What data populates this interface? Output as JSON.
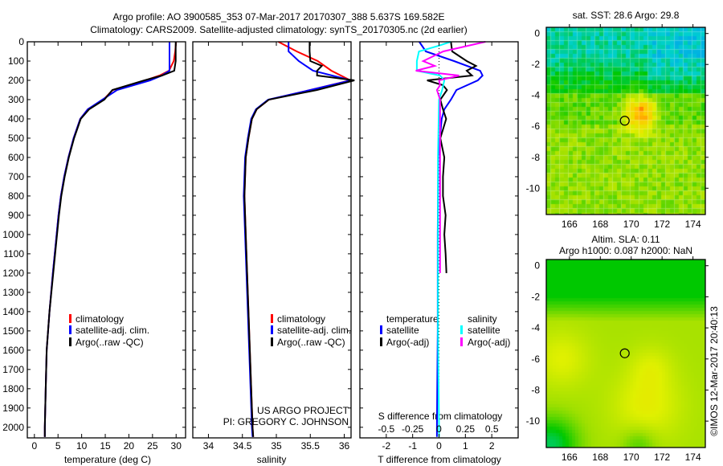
{
  "title": {
    "line1": "Argo profile: AO 3900585_353 07-Mar-2017 20170307_388 5.637S 169.582E",
    "line2": "Climatology: CARS2009. Satellite-adjusted climatology: synTS_20170305.nc (2d earlier)"
  },
  "credit": {
    "project": "US ARGO PROJECT",
    "pi": "PI: GREGORY C. JOHNSON",
    "stamp": "©IMOS 12-Mar-2017 20:40:13"
  },
  "colors": {
    "climatology": "#ff0000",
    "satellite": "#0000ff",
    "argo": "#000000",
    "sal_satellite": "#00ffff",
    "sal_argo": "#ff00ff"
  },
  "chart_data": [
    {
      "type": "line",
      "name": "temperature-profile",
      "xlabel": "temperature (deg C)",
      "ylabel": "",
      "xlim": [
        -1.5,
        32
      ],
      "ylim": [
        2055,
        0
      ],
      "xticks": [
        0,
        5,
        10,
        15,
        20,
        25,
        30
      ],
      "yticks": [
        0,
        100,
        200,
        300,
        400,
        500,
        600,
        700,
        800,
        900,
        1000,
        1100,
        1200,
        1300,
        1400,
        1500,
        1600,
        1700,
        1800,
        1900,
        2000
      ],
      "legend": [
        "climatology",
        "satellite-adj. clim.",
        "Argo(..raw -QC)"
      ],
      "series": [
        {
          "name": "climatology",
          "color": "#ff0000",
          "depth": [
            0,
            50,
            100,
            150,
            175,
            200,
            250,
            300,
            350,
            400,
            500,
            600,
            700,
            800,
            900,
            1000,
            1200,
            1400,
            1600,
            1800,
            2000,
            2050
          ],
          "values": [
            30.0,
            29.8,
            29.5,
            28.5,
            26.5,
            23.5,
            16.6,
            14.6,
            11.3,
            9.7,
            8.3,
            7.2,
            6.3,
            5.6,
            5.1,
            4.7,
            3.9,
            3.2,
            2.6,
            2.4,
            2.2,
            2.2
          ]
        },
        {
          "name": "satellite-adj. clim.",
          "color": "#0000ff",
          "depth": [
            0,
            50,
            100,
            150,
            175,
            200,
            250,
            300,
            350,
            400,
            500,
            600,
            700,
            800,
            900,
            1000,
            1200,
            1400,
            1600,
            1800,
            2000,
            2050
          ],
          "values": [
            28.6,
            28.6,
            28.6,
            28.6,
            27.0,
            24.5,
            17.5,
            14.4,
            11.3,
            9.7,
            8.3,
            7.2,
            6.3,
            5.6,
            5.1,
            4.7,
            3.9,
            3.2,
            2.6,
            2.4,
            2.2,
            2.2
          ]
        },
        {
          "name": "Argo(..raw -QC)",
          "color": "#000000",
          "depth": [
            0,
            50,
            100,
            150,
            175,
            200,
            250,
            300,
            350,
            400,
            500,
            600,
            700,
            800,
            900,
            1000,
            1200,
            1400,
            1600,
            1800,
            2000,
            2050
          ],
          "values": [
            29.9,
            29.9,
            29.9,
            29.6,
            27.0,
            23.3,
            16.5,
            14.8,
            11.6,
            9.8,
            8.4,
            7.3,
            6.4,
            5.7,
            5.2,
            4.8,
            4.0,
            3.2,
            2.6,
            2.4,
            2.2,
            2.2
          ]
        }
      ]
    },
    {
      "type": "line",
      "name": "salinity-profile",
      "xlabel": "salinity",
      "ylabel": "",
      "xlim": [
        33.77,
        36.1
      ],
      "ylim": [
        2055,
        0
      ],
      "xticks": [
        34,
        34.5,
        35,
        35.5,
        36
      ],
      "legend": [
        "climatology",
        "satellite-adj. clim.",
        "Argo(..raw -QC)"
      ],
      "series": [
        {
          "name": "climatology",
          "color": "#ff0000",
          "depth": [
            0,
            50,
            100,
            150,
            200,
            250,
            300,
            350,
            400,
            500,
            600,
            800,
            1000,
            1200,
            1400,
            1600,
            1800,
            2000,
            2050
          ],
          "values": [
            35.03,
            35.3,
            35.61,
            35.81,
            36.09,
            35.5,
            34.89,
            34.71,
            34.64,
            34.59,
            34.55,
            34.53,
            34.55,
            34.57,
            34.59,
            34.61,
            34.63,
            34.65,
            34.66
          ]
        },
        {
          "name": "satellite-adj. clim.",
          "color": "#0000ff",
          "depth": [
            0,
            50,
            100,
            150,
            200,
            250,
            300,
            350,
            400,
            500,
            600,
            800,
            1000,
            1200,
            1400,
            1600,
            1800,
            2000,
            2050
          ],
          "values": [
            35.18,
            35.18,
            35.33,
            35.54,
            36.1,
            35.5,
            34.88,
            34.7,
            34.63,
            34.58,
            34.54,
            34.52,
            34.54,
            34.56,
            34.58,
            34.6,
            34.62,
            34.64,
            34.65
          ]
        },
        {
          "name": "Argo(..raw -QC)",
          "color": "#000000",
          "depth": [
            0,
            50,
            100,
            125,
            150,
            175,
            200,
            250,
            300,
            350,
            400,
            500,
            600,
            800,
            1000,
            1200,
            1400,
            1600,
            1800,
            2000,
            2050
          ],
          "values": [
            35.49,
            35.49,
            35.5,
            35.67,
            35.6,
            35.6,
            36.15,
            35.6,
            34.89,
            34.71,
            34.64,
            34.59,
            34.55,
            34.53,
            34.55,
            34.57,
            34.59,
            34.61,
            34.63,
            34.65,
            34.66
          ]
        }
      ]
    },
    {
      "type": "line",
      "name": "difference-profile",
      "xlabel": "T difference from climatology",
      "x2label": "S difference from climatology",
      "xlim": [
        -3,
        3
      ],
      "x2lim": [
        -0.75,
        0.75
      ],
      "ylim": [
        2055,
        0
      ],
      "xticks": [
        -2,
        -1,
        0,
        1,
        2
      ],
      "x2ticks": [
        -0.5,
        -0.25,
        0,
        0.25,
        0.5
      ],
      "legend": {
        "temperature_title": "temperature",
        "salinity_title": "salinity",
        "satellite": "satellite",
        "argo": "Argo(-adj)"
      },
      "series": [
        {
          "name": "T satellite",
          "axis": "T",
          "color": "#0000ff",
          "depth": [
            0,
            50,
            100,
            150,
            175,
            200,
            250,
            300,
            350,
            400,
            600,
            1000,
            1500,
            2000,
            2050
          ],
          "values": [
            -0.75,
            -0.5,
            0.57,
            1.56,
            1.65,
            1.47,
            0.66,
            0.45,
            0.2,
            0.1,
            -0.03,
            -0.05,
            -0.05,
            -0.08,
            -0.08
          ]
        },
        {
          "name": "T Argo(-adj)",
          "axis": "T",
          "color": "#000000",
          "depth": [
            0,
            50,
            100,
            125,
            150,
            175,
            200,
            225,
            250,
            300,
            350,
            400,
            500,
            600,
            700,
            800,
            900,
            1000,
            1100,
            1200
          ],
          "values": [
            0.45,
            0.5,
            1.05,
            1.4,
            1.05,
            1.25,
            -0.45,
            0.15,
            0.3,
            0.05,
            0.15,
            0.27,
            0.05,
            0.2,
            0.15,
            0.15,
            0.25,
            0.2,
            0.25,
            0.28
          ]
        },
        {
          "name": "S satellite",
          "axis": "S",
          "color": "#00ffff",
          "depth": [
            0,
            20,
            50,
            100,
            150,
            175,
            200,
            250,
            300,
            600,
            1000,
            1500,
            2000,
            2050
          ],
          "values": [
            0.11,
            0.0,
            -0.19,
            -0.21,
            -0.21,
            0.01,
            0.05,
            0.03,
            0.0,
            -0.01,
            -0.01,
            -0.01,
            0.0,
            0.0
          ]
        },
        {
          "name": "S Argo(-adj)",
          "axis": "S",
          "color": "#ff00ff",
          "depth": [
            0,
            50,
            100,
            125,
            150,
            175,
            200,
            225,
            250,
            300,
            600,
            900,
            1200
          ],
          "values": [
            0.44,
            0.04,
            -0.15,
            -0.04,
            -0.22,
            0.19,
            0.0,
            0.01,
            -0.02,
            0.01,
            0.01,
            0.01,
            0.01
          ]
        }
      ]
    },
    {
      "type": "heatmap",
      "name": "sst-map",
      "title": "sat. SST: 28.6 Argo: 29.8",
      "xlim": [
        164.5,
        174.8
      ],
      "ylim": [
        -11.7,
        0.4
      ],
      "xticks": [
        166,
        168,
        170,
        172,
        174
      ],
      "yticks": [
        0,
        -2,
        -4,
        -6,
        -8,
        -10
      ],
      "float_position": {
        "lon": 169.582,
        "lat": -5.637
      }
    },
    {
      "type": "heatmap",
      "name": "sla-map",
      "title": "Altim. SLA: 0.11",
      "subtitle": "Argo h1000: 0.087 h2000: NaN",
      "xlim": [
        164.5,
        174.8
      ],
      "ylim": [
        -11.7,
        0.4
      ],
      "xticks": [
        166,
        168,
        170,
        172,
        174
      ],
      "yticks": [
        0,
        -2,
        -4,
        -6,
        -8,
        -10
      ],
      "float_position": {
        "lon": 169.582,
        "lat": -5.637
      }
    }
  ]
}
